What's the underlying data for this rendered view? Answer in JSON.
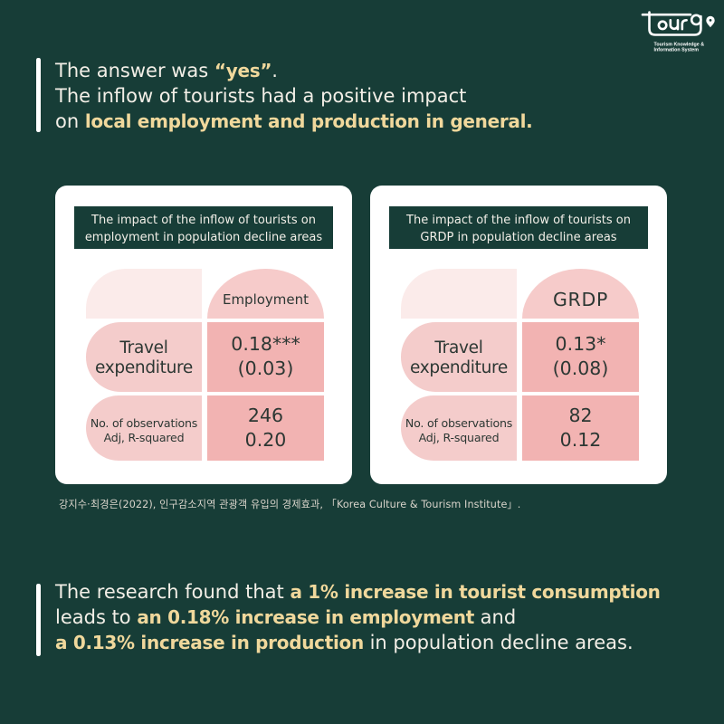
{
  "page": {
    "background_color": "#173d37",
    "accent_color": "#f0d89c",
    "card_color": "#ffffff",
    "pink_pale": "#fbebea",
    "pink_light": "#f4cccb",
    "pink_mid": "#f6cbca",
    "pink_dark": "#f2b3b2"
  },
  "logo": {
    "wordmark": "tour9",
    "tagline_line1": "Tourism Knowledge &",
    "tagline_line2": "Information System"
  },
  "intro": {
    "lines": [
      [
        {
          "t": "The answer was ",
          "s": "plain"
        },
        {
          "t": "“yes”",
          "s": "accent"
        },
        {
          "t": ".",
          "s": "plain"
        }
      ],
      [
        {
          "t": "The inflow of tourists had a positive impact",
          "s": "plain"
        }
      ],
      [
        {
          "t": "on ",
          "s": "plain"
        },
        {
          "t": "local employment and production in general.",
          "s": "accent"
        }
      ]
    ]
  },
  "cards": [
    {
      "title_lines": [
        "The impact of the inflow of tourists on",
        "employment in population decline areas"
      ],
      "column_header": "Employment",
      "rows": [
        {
          "label_lines": [
            "Travel",
            "expenditure"
          ],
          "value_lines": [
            "0.18***",
            "(0.03)"
          ]
        },
        {
          "label_lines": [
            "No. of observations",
            "Adj, R-squared"
          ],
          "value_lines": [
            "246",
            "0.20"
          ]
        }
      ]
    },
    {
      "title_lines": [
        "The impact of the inflow of tourists on",
        "GRDP in population decline areas"
      ],
      "column_header": "GRDP",
      "rows": [
        {
          "label_lines": [
            "Travel",
            "expenditure"
          ],
          "value_lines": [
            "0.13*",
            "(0.08)"
          ]
        },
        {
          "label_lines": [
            "No. of observations",
            "Adj, R-squared"
          ],
          "value_lines": [
            "82",
            "0.12"
          ]
        }
      ]
    }
  ],
  "citation": "강지수·최경은(2022), 인구감소지역 관광객 유입의 경제효과, 「Korea Culture & Tourism Institute」.",
  "conclusion": {
    "lines": [
      [
        {
          "t": "The research found that ",
          "s": "plain"
        },
        {
          "t": "a 1% increase in tourist consumption",
          "s": "accent"
        }
      ],
      [
        {
          "t": "leads to ",
          "s": "plain"
        },
        {
          "t": "an 0.18% increase in employment",
          "s": "accent"
        },
        {
          "t": " and",
          "s": "plain"
        }
      ],
      [
        {
          "t": "a 0.13% increase in production",
          "s": "accent"
        },
        {
          "t": " in population decline areas.",
          "s": "plain"
        }
      ]
    ]
  },
  "chart_data": [
    {
      "type": "table",
      "title": "The impact of the inflow of tourists on employment in population decline areas",
      "columns": [
        "",
        "Employment"
      ],
      "rows": [
        [
          "Travel expenditure",
          "0.18*** (0.03)"
        ],
        [
          "No. of observations / Adj, R-squared",
          "246 / 0.20"
        ]
      ]
    },
    {
      "type": "table",
      "title": "The impact of the inflow of tourists on GRDP in population decline areas",
      "columns": [
        "",
        "GRDP"
      ],
      "rows": [
        [
          "Travel expenditure",
          "0.13* (0.08)"
        ],
        [
          "No. of observations / Adj, R-squared",
          "82 / 0.12"
        ]
      ]
    }
  ]
}
